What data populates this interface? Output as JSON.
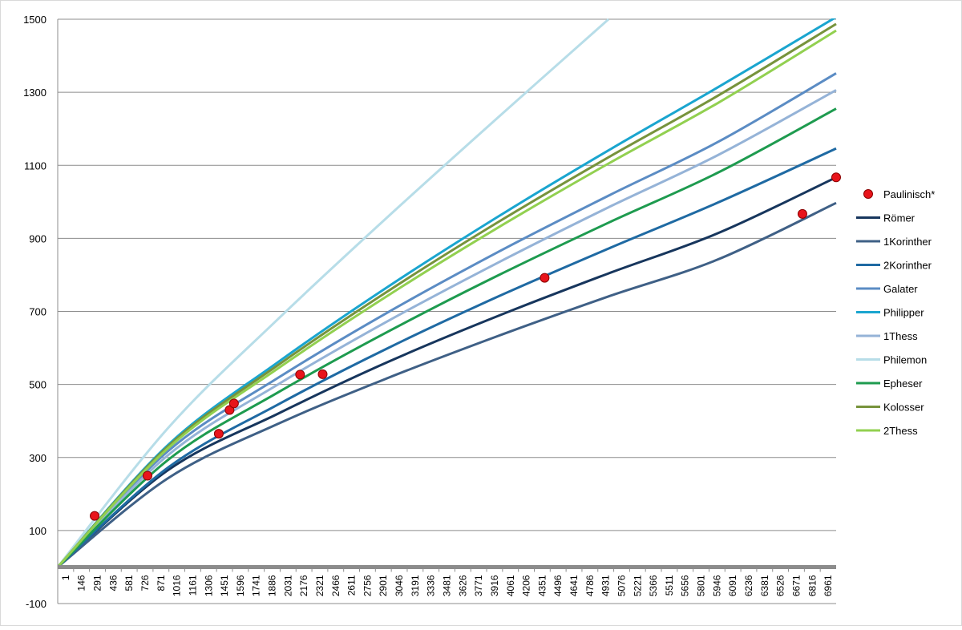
{
  "chart_data": {
    "type": "line",
    "title": "",
    "xlabel": "",
    "ylabel": "",
    "ylim": [
      -100,
      1500
    ],
    "y_ticks": [
      -100,
      100,
      300,
      500,
      700,
      900,
      1100,
      1300,
      1500
    ],
    "x_range": [
      1,
      7066
    ],
    "x_tick_labels": [
      "1",
      "146",
      "291",
      "436",
      "581",
      "726",
      "871",
      "1016",
      "1161",
      "1306",
      "1451",
      "1596",
      "1741",
      "1886",
      "2031",
      "2176",
      "2321",
      "2466",
      "2611",
      "2756",
      "2901",
      "3046",
      "3191",
      "3336",
      "3481",
      "3626",
      "3771",
      "3916",
      "4061",
      "4206",
      "4351",
      "4496",
      "4641",
      "4786",
      "4931",
      "5076",
      "5221",
      "5366",
      "5511",
      "5656",
      "5801",
      "5946",
      "6091",
      "6236",
      "6381",
      "6526",
      "6671",
      "6816",
      "6961"
    ],
    "grid": "horizontal",
    "legend_position": "right",
    "scatter_series": {
      "name": "Paulinisch*",
      "color": "#e8141b",
      "points": [
        {
          "x": 335,
          "y": 140
        },
        {
          "x": 815,
          "y": 250
        },
        {
          "x": 1462,
          "y": 365
        },
        {
          "x": 1560,
          "y": 430
        },
        {
          "x": 1600,
          "y": 448
        },
        {
          "x": 2200,
          "y": 527
        },
        {
          "x": 2405,
          "y": 528
        },
        {
          "x": 4420,
          "y": 792
        },
        {
          "x": 6760,
          "y": 967
        },
        {
          "x": 7066,
          "y": 1067
        }
      ]
    },
    "series": [
      {
        "name": "Römer",
        "color": "#17365d",
        "values": [
          [
            0,
            0
          ],
          [
            1000,
            265
          ],
          [
            2000,
            420
          ],
          [
            3000,
            562
          ],
          [
            4000,
            688
          ],
          [
            5000,
            804
          ],
          [
            6000,
            915
          ],
          [
            7066,
            1067
          ]
        ]
      },
      {
        "name": "1Korinther",
        "color": "#3f6086",
        "values": [
          [
            0,
            0
          ],
          [
            1000,
            243
          ],
          [
            2000,
            392
          ],
          [
            3000,
            518
          ],
          [
            4000,
            633
          ],
          [
            5000,
            741
          ],
          [
            6000,
            843
          ],
          [
            7066,
            997
          ]
        ]
      },
      {
        "name": "2Korinther",
        "color": "#1f6aa3",
        "values": [
          [
            0,
            0
          ],
          [
            1000,
            272
          ],
          [
            2000,
            445
          ],
          [
            3000,
            600
          ],
          [
            4000,
            741
          ],
          [
            5000,
            872
          ],
          [
            6000,
            999
          ],
          [
            7066,
            1146
          ]
        ]
      },
      {
        "name": "Galater",
        "color": "#5b8cc4",
        "values": [
          [
            0,
            0
          ],
          [
            1000,
            317
          ],
          [
            2000,
            518
          ],
          [
            3000,
            698
          ],
          [
            4000,
            863
          ],
          [
            5000,
            1017
          ],
          [
            6000,
            1165
          ],
          [
            7066,
            1352
          ]
        ]
      },
      {
        "name": "Philipper",
        "color": "#1aa5cf",
        "values": [
          [
            0,
            0
          ],
          [
            1000,
            334
          ],
          [
            2000,
            561
          ],
          [
            3000,
            768
          ],
          [
            4000,
            960
          ],
          [
            5000,
            1141
          ],
          [
            6000,
            1315
          ],
          [
            7066,
            1506
          ]
        ]
      },
      {
        "name": "1Thess",
        "color": "#95b3d7",
        "values": [
          [
            0,
            0
          ],
          [
            1000,
            306
          ],
          [
            2000,
            500
          ],
          [
            3000,
            674
          ],
          [
            4000,
            834
          ],
          [
            5000,
            985
          ],
          [
            6000,
            1129
          ],
          [
            7066,
            1306
          ]
        ]
      },
      {
        "name": "Philemon",
        "color": "#b7dde8",
        "values": [
          [
            0,
            0
          ],
          [
            1000,
            380
          ],
          [
            2000,
            679
          ],
          [
            3000,
            960
          ],
          [
            4000,
            1232
          ],
          [
            5000,
            1500
          ]
        ]
      },
      {
        "name": "Epheser",
        "color": "#1e9b4f",
        "values": [
          [
            0,
            0
          ],
          [
            1000,
            293
          ],
          [
            2000,
            478
          ],
          [
            3000,
            645
          ],
          [
            4000,
            799
          ],
          [
            5000,
            943
          ],
          [
            6000,
            1081
          ],
          [
            7066,
            1255
          ]
        ]
      },
      {
        "name": "Kolosser",
        "color": "#77933c",
        "values": [
          [
            0,
            0
          ],
          [
            1000,
            330
          ],
          [
            2000,
            553
          ],
          [
            3000,
            756
          ],
          [
            4000,
            945
          ],
          [
            5000,
            1122
          ],
          [
            6000,
            1292
          ],
          [
            7066,
            1487
          ]
        ]
      },
      {
        "name": "2Thess",
        "color": "#92d050",
        "values": [
          [
            0,
            0
          ],
          [
            1000,
            325
          ],
          [
            2000,
            544
          ],
          [
            3000,
            744
          ],
          [
            4000,
            930
          ],
          [
            5000,
            1105
          ],
          [
            6000,
            1272
          ],
          [
            7066,
            1469
          ]
        ]
      }
    ]
  }
}
